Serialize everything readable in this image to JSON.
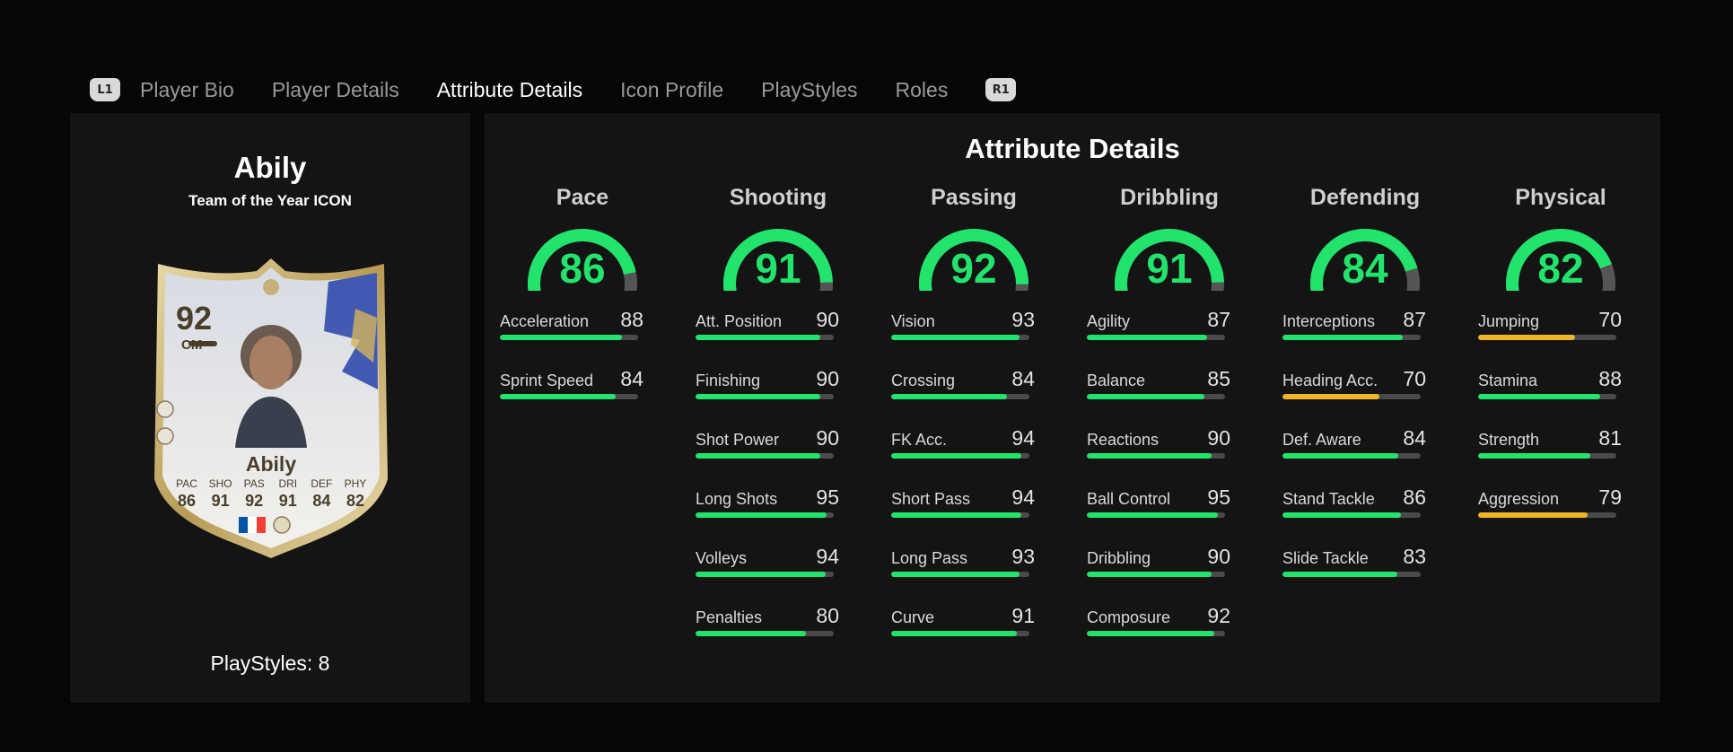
{
  "tabs": {
    "left_button": "L1",
    "right_button": "R1",
    "items": [
      {
        "label": "Player Bio",
        "active": false
      },
      {
        "label": "Player Details",
        "active": false
      },
      {
        "label": "Attribute Details",
        "active": true
      },
      {
        "label": "Icon Profile",
        "active": false
      },
      {
        "label": "PlayStyles",
        "active": false
      },
      {
        "label": "Roles",
        "active": false
      }
    ]
  },
  "player": {
    "name": "Abily",
    "card_type": "Team of the Year ICON",
    "playstyles_label": "PlayStyles: 8"
  },
  "card": {
    "rating": "92",
    "position": "CM",
    "name": "Abily",
    "stats": [
      {
        "label": "PAC",
        "value": "86"
      },
      {
        "label": "SHO",
        "value": "91"
      },
      {
        "label": "PAS",
        "value": "92"
      },
      {
        "label": "DRI",
        "value": "91"
      },
      {
        "label": "DEF",
        "value": "84"
      },
      {
        "label": "PHY",
        "value": "82"
      }
    ]
  },
  "attributes_panel": {
    "title": "Attribute Details",
    "colors": {
      "high": "#22e36b",
      "medium": "#f0b429",
      "track": "#4a4a4a"
    },
    "categories": [
      {
        "name": "Pace",
        "value": 86,
        "attributes": [
          {
            "name": "Acceleration",
            "value": 88
          },
          {
            "name": "Sprint Speed",
            "value": 84
          }
        ]
      },
      {
        "name": "Shooting",
        "value": 91,
        "attributes": [
          {
            "name": "Att. Position",
            "value": 90
          },
          {
            "name": "Finishing",
            "value": 90
          },
          {
            "name": "Shot Power",
            "value": 90
          },
          {
            "name": "Long Shots",
            "value": 95
          },
          {
            "name": "Volleys",
            "value": 94
          },
          {
            "name": "Penalties",
            "value": 80
          }
        ]
      },
      {
        "name": "Passing",
        "value": 92,
        "attributes": [
          {
            "name": "Vision",
            "value": 93
          },
          {
            "name": "Crossing",
            "value": 84
          },
          {
            "name": "FK Acc.",
            "value": 94
          },
          {
            "name": "Short Pass",
            "value": 94
          },
          {
            "name": "Long Pass",
            "value": 93
          },
          {
            "name": "Curve",
            "value": 91
          }
        ]
      },
      {
        "name": "Dribbling",
        "value": 91,
        "attributes": [
          {
            "name": "Agility",
            "value": 87
          },
          {
            "name": "Balance",
            "value": 85
          },
          {
            "name": "Reactions",
            "value": 90
          },
          {
            "name": "Ball Control",
            "value": 95
          },
          {
            "name": "Dribbling",
            "value": 90
          },
          {
            "name": "Composure",
            "value": 92
          }
        ]
      },
      {
        "name": "Defending",
        "value": 84,
        "attributes": [
          {
            "name": "Interceptions",
            "value": 87
          },
          {
            "name": "Heading Acc.",
            "value": 70
          },
          {
            "name": "Def. Aware",
            "value": 84
          },
          {
            "name": "Stand Tackle",
            "value": 86
          },
          {
            "name": "Slide Tackle",
            "value": 83
          }
        ]
      },
      {
        "name": "Physical",
        "value": 82,
        "attributes": [
          {
            "name": "Jumping",
            "value": 70
          },
          {
            "name": "Stamina",
            "value": 88
          },
          {
            "name": "Strength",
            "value": 81
          },
          {
            "name": "Aggression",
            "value": 79
          }
        ]
      }
    ]
  }
}
